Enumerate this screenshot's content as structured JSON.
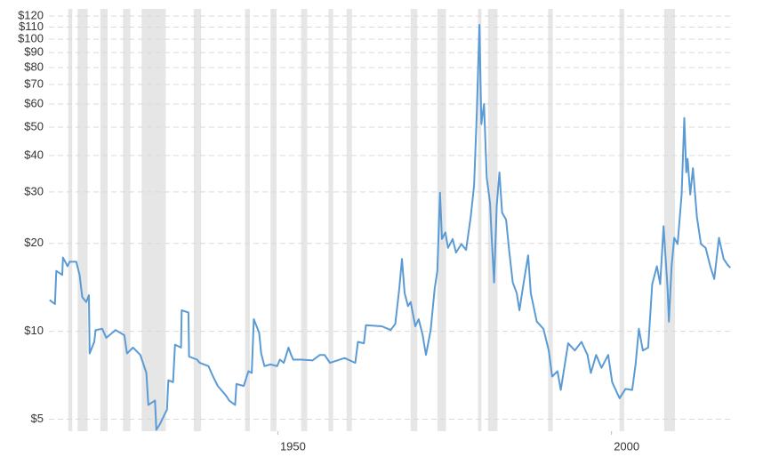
{
  "chart_data": {
    "type": "line",
    "log_y": true,
    "grid": true,
    "color": "#5b9bd5",
    "recession_color": "#e6e6e6",
    "xlim": [
      1915.7,
      2017.9
    ],
    "ylim": [
      4.55,
      127
    ],
    "xticks": [
      1950,
      2000
    ],
    "yticks": [
      {
        "value": 5,
        "label": "$5"
      },
      {
        "value": 10,
        "label": "$10"
      },
      {
        "value": 20,
        "label": "$20"
      },
      {
        "value": 30,
        "label": "$30"
      },
      {
        "value": 40,
        "label": "$40"
      },
      {
        "value": 50,
        "label": "$50"
      },
      {
        "value": 60,
        "label": "$60"
      },
      {
        "value": 70,
        "label": "$70"
      },
      {
        "value": 80,
        "label": "$80"
      },
      {
        "value": 90,
        "label": "$90"
      },
      {
        "value": 100,
        "label": "$100"
      },
      {
        "value": 110,
        "label": "$110"
      },
      {
        "value": 120,
        "label": "$120"
      }
    ],
    "recessions": [
      [
        1918.6,
        1919.2
      ],
      [
        1920.0,
        1921.5
      ],
      [
        1923.4,
        1924.5
      ],
      [
        1926.8,
        1927.9
      ],
      [
        1929.6,
        1933.2
      ],
      [
        1937.4,
        1938.5
      ],
      [
        1945.1,
        1945.8
      ],
      [
        1948.9,
        1949.8
      ],
      [
        1953.5,
        1954.4
      ],
      [
        1957.6,
        1958.3
      ],
      [
        1960.3,
        1961.1
      ],
      [
        1969.9,
        1970.9
      ],
      [
        1973.9,
        1975.2
      ],
      [
        1980.0,
        1980.5
      ],
      [
        1981.5,
        1982.9
      ],
      [
        1990.5,
        1991.2
      ],
      [
        2001.2,
        2001.9
      ],
      [
        2007.9,
        2009.5
      ]
    ],
    "x": [
      1915.8,
      1916.6,
      1916.8,
      1917.7,
      1917.8,
      1918.5,
      1918.8,
      1919.8,
      1920.3,
      1920.7,
      1921.3,
      1921.7,
      1921.8,
      1922.5,
      1922.7,
      1923.7,
      1924.3,
      1925.7,
      1927.0,
      1927.4,
      1928.3,
      1929.4,
      1930.3,
      1930.6,
      1931.6,
      1931.8,
      1932.3,
      1933.4,
      1933.6,
      1934.3,
      1934.6,
      1935.5,
      1935.6,
      1936.6,
      1936.7,
      1937.9,
      1938.3,
      1939.6,
      1940.3,
      1941.0,
      1942.3,
      1942.7,
      1943.6,
      1943.8,
      1944.9,
      1945.6,
      1946.1,
      1946.4,
      1947.2,
      1947.5,
      1948.0,
      1948.9,
      1949.9,
      1950.3,
      1950.9,
      1951.6,
      1952.0,
      1952.3,
      1953.6,
      1955.2,
      1956.3,
      1957.0,
      1957.8,
      1958.9,
      1960.0,
      1961.6,
      1962.0,
      1962.9,
      1963.2,
      1965.6,
      1966.9,
      1967.6,
      1968.2,
      1968.6,
      1969.0,
      1969.5,
      1969.9,
      1970.6,
      1971.1,
      1971.7,
      1972.2,
      1972.9,
      1973.5,
      1973.9,
      1974.3,
      1974.6,
      1975.1,
      1975.5,
      1976.2,
      1976.7,
      1977.5,
      1978.2,
      1978.9,
      1979.4,
      1979.8,
      1980.2,
      1980.5,
      1980.9,
      1981.3,
      1981.8,
      1982.0,
      1982.4,
      1982.8,
      1983.2,
      1983.6,
      1984.2,
      1984.7,
      1985.2,
      1985.8,
      1986.2,
      1986.8,
      1987.5,
      1987.9,
      1988.8,
      1989.8,
      1990.6,
      1991.1,
      1991.9,
      1992.4,
      1993.5,
      1994.5,
      1995.5,
      1996.4,
      1996.9,
      1997.7,
      1998.5,
      1999.5,
      2000.1,
      2001.2,
      2002.1,
      2003.1,
      2003.6,
      2004.1,
      2004.7,
      2005.5,
      2006.1,
      2006.8,
      2007.3,
      2007.8,
      2008.4,
      2008.6,
      2009.0,
      2009.4,
      2009.9,
      2010.5,
      2010.9,
      2011.2,
      2011.4,
      2011.8,
      2012.2,
      2012.8,
      2013.4,
      2014.1,
      2014.8,
      2015.4,
      2016.1,
      2016.8,
      2017.4,
      2017.8
    ],
    "values": [
      12.8,
      12.4,
      16.1,
      15.6,
      17.9,
      16.7,
      17.3,
      17.3,
      15.6,
      13.1,
      12.6,
      13.3,
      8.4,
      9.2,
      10.1,
      10.2,
      9.5,
      10.1,
      9.7,
      8.4,
      8.8,
      8.3,
      7.2,
      5.6,
      5.8,
      4.6,
      4.8,
      5.4,
      6.8,
      6.7,
      9.0,
      8.8,
      11.8,
      11.6,
      8.2,
      8.0,
      7.8,
      7.6,
      7.0,
      6.5,
      6.0,
      5.8,
      5.6,
      6.6,
      6.5,
      7.3,
      7.2,
      11.0,
      9.9,
      8.4,
      7.6,
      7.7,
      7.6,
      8.0,
      7.8,
      8.8,
      8.3,
      8.0,
      8.0,
      7.95,
      8.3,
      8.3,
      7.8,
      7.95,
      8.1,
      7.8,
      9.2,
      9.1,
      10.5,
      10.4,
      10.1,
      10.6,
      14.0,
      17.7,
      13.5,
      12.2,
      12.6,
      10.4,
      11.0,
      9.7,
      8.3,
      10.1,
      14.0,
      16.1,
      29.8,
      20.7,
      21.8,
      19.3,
      20.7,
      18.6,
      19.9,
      19.0,
      24.6,
      31.5,
      55,
      112,
      51.2,
      60,
      33.7,
      27.4,
      21.8,
      14.7,
      27.0,
      35,
      25.5,
      24.1,
      18.6,
      14.7,
      13.5,
      11.8,
      14.5,
      18.2,
      13.5,
      10.8,
      10.2,
      8.6,
      7.0,
      7.3,
      6.3,
      9.1,
      8.6,
      9.2,
      8.3,
      7.2,
      8.3,
      7.5,
      8.3,
      6.7,
      5.9,
      6.35,
      6.3,
      7.7,
      10.2,
      8.6,
      8.8,
      14.5,
      16.7,
      14.5,
      22.9,
      14.0,
      10.8,
      16.7,
      20.9,
      19.9,
      29.4,
      53.8,
      35,
      38.9,
      29.4,
      36.2,
      24.6,
      19.9,
      19.3,
      16.7,
      15.1,
      20.9,
      17.7,
      16.9,
      16.5
    ]
  }
}
